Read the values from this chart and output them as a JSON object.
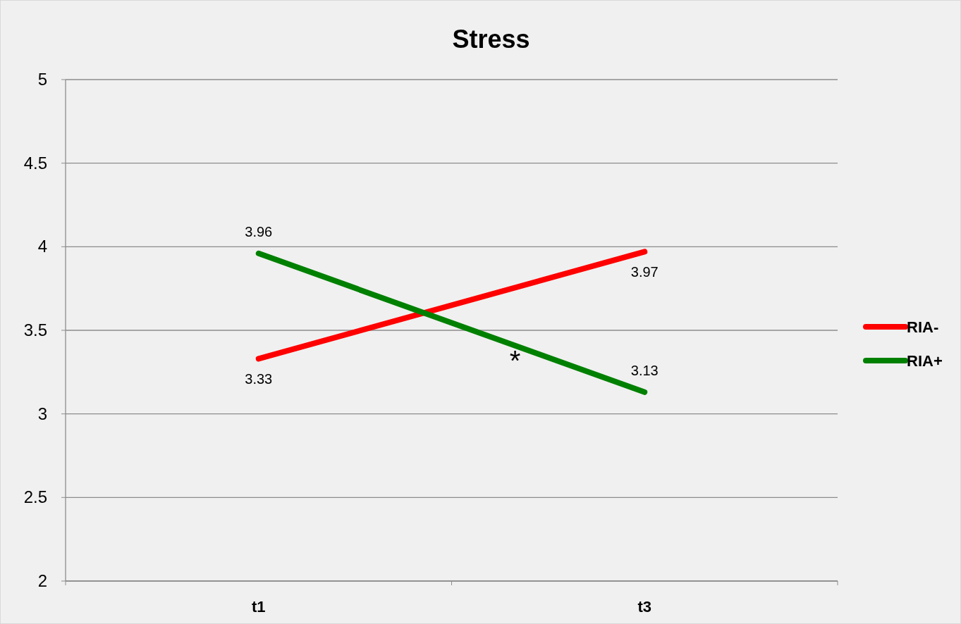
{
  "chart_data": {
    "type": "line",
    "title": "Stress",
    "categories": [
      "t1",
      "t3"
    ],
    "series": [
      {
        "name": "RIA-",
        "color": "#ff0000",
        "values": [
          3.33,
          3.97
        ]
      },
      {
        "name": "RIA+",
        "color": "#008000",
        "values": [
          3.96,
          3.13
        ]
      }
    ],
    "ylim": [
      2,
      5
    ],
    "yticks": [
      2,
      2.5,
      3,
      3.5,
      4,
      4.5,
      5
    ],
    "grid": "y",
    "legend": "right",
    "data_labels": true,
    "marker": "none",
    "line_style": "solid",
    "annotations": [
      "*"
    ]
  }
}
